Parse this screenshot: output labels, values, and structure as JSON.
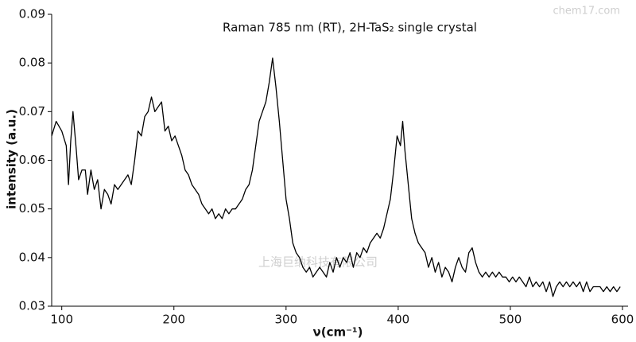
{
  "chart_data": {
    "type": "line",
    "title": "Raman 785 nm (RT), 2H-TaS₂ single crystal",
    "x_label": "ν(cm⁻¹)",
    "y_label": "intensity (a.u.)",
    "annotations": [
      "上海巨纳科技有限公司",
      "chem17.com"
    ],
    "xlim": [
      91,
      600
    ],
    "ylim": [
      0.03,
      0.09
    ],
    "xticks": [
      100,
      200,
      300,
      400,
      500,
      600
    ],
    "yticks": [
      0.03,
      0.04,
      0.05,
      0.06,
      0.07,
      0.08,
      0.09
    ],
    "grid": false,
    "series": [
      {
        "color": "#000000",
        "x": [
          91,
          95,
          100,
          104,
          106,
          108,
          110,
          113,
          115,
          118,
          121,
          123,
          126,
          129,
          132,
          135,
          138,
          141,
          144,
          147,
          150,
          153,
          156,
          159,
          162,
          165,
          168,
          171,
          174,
          177,
          180,
          183,
          186,
          189,
          192,
          195,
          198,
          201,
          204,
          207,
          210,
          213,
          216,
          219,
          222,
          225,
          228,
          231,
          234,
          237,
          240,
          243,
          246,
          249,
          252,
          255,
          258,
          261,
          264,
          267,
          270,
          273,
          276,
          279,
          282,
          285,
          288,
          291,
          294,
          297,
          300,
          303,
          306,
          309,
          312,
          315,
          318,
          321,
          324,
          327,
          330,
          333,
          336,
          339,
          342,
          345,
          348,
          351,
          354,
          357,
          360,
          363,
          366,
          369,
          372,
          375,
          378,
          381,
          384,
          387,
          390,
          393,
          396,
          399,
          402,
          404,
          406,
          409,
          412,
          415,
          418,
          421,
          424,
          427,
          430,
          433,
          436,
          439,
          442,
          445,
          448,
          451,
          454,
          457,
          460,
          463,
          466,
          469,
          472,
          475,
          478,
          481,
          484,
          487,
          490,
          493,
          496,
          499,
          502,
          505,
          508,
          511,
          514,
          517,
          520,
          523,
          526,
          529,
          532,
          535,
          538,
          541,
          544,
          547,
          550,
          553,
          556,
          559,
          562,
          565,
          568,
          571,
          574,
          577,
          580,
          583,
          586,
          589,
          592,
          595,
          598
        ],
        "values": [
          0.065,
          0.068,
          0.066,
          0.063,
          0.055,
          0.064,
          0.07,
          0.062,
          0.056,
          0.058,
          0.058,
          0.053,
          0.058,
          0.054,
          0.056,
          0.05,
          0.054,
          0.053,
          0.051,
          0.055,
          0.054,
          0.055,
          0.056,
          0.057,
          0.055,
          0.06,
          0.066,
          0.065,
          0.069,
          0.07,
          0.073,
          0.07,
          0.071,
          0.072,
          0.066,
          0.067,
          0.064,
          0.065,
          0.063,
          0.061,
          0.058,
          0.057,
          0.055,
          0.054,
          0.053,
          0.051,
          0.05,
          0.049,
          0.05,
          0.048,
          0.049,
          0.048,
          0.05,
          0.049,
          0.05,
          0.05,
          0.051,
          0.052,
          0.054,
          0.055,
          0.058,
          0.063,
          0.068,
          0.07,
          0.072,
          0.076,
          0.081,
          0.075,
          0.068,
          0.06,
          0.052,
          0.048,
          0.043,
          0.041,
          0.04,
          0.038,
          0.037,
          0.038,
          0.036,
          0.037,
          0.038,
          0.037,
          0.036,
          0.039,
          0.037,
          0.04,
          0.038,
          0.04,
          0.039,
          0.041,
          0.038,
          0.041,
          0.04,
          0.042,
          0.041,
          0.043,
          0.044,
          0.045,
          0.044,
          0.046,
          0.049,
          0.052,
          0.058,
          0.065,
          0.063,
          0.068,
          0.062,
          0.055,
          0.048,
          0.045,
          0.043,
          0.042,
          0.041,
          0.038,
          0.04,
          0.037,
          0.039,
          0.036,
          0.038,
          0.037,
          0.035,
          0.038,
          0.04,
          0.038,
          0.037,
          0.041,
          0.042,
          0.039,
          0.037,
          0.036,
          0.037,
          0.036,
          0.037,
          0.036,
          0.037,
          0.036,
          0.036,
          0.035,
          0.036,
          0.035,
          0.036,
          0.035,
          0.034,
          0.036,
          0.034,
          0.035,
          0.034,
          0.035,
          0.033,
          0.035,
          0.032,
          0.034,
          0.035,
          0.034,
          0.035,
          0.034,
          0.035,
          0.034,
          0.035,
          0.033,
          0.035,
          0.033,
          0.034,
          0.034,
          0.034,
          0.033,
          0.034,
          0.033,
          0.034,
          0.033,
          0.034
        ]
      }
    ]
  }
}
